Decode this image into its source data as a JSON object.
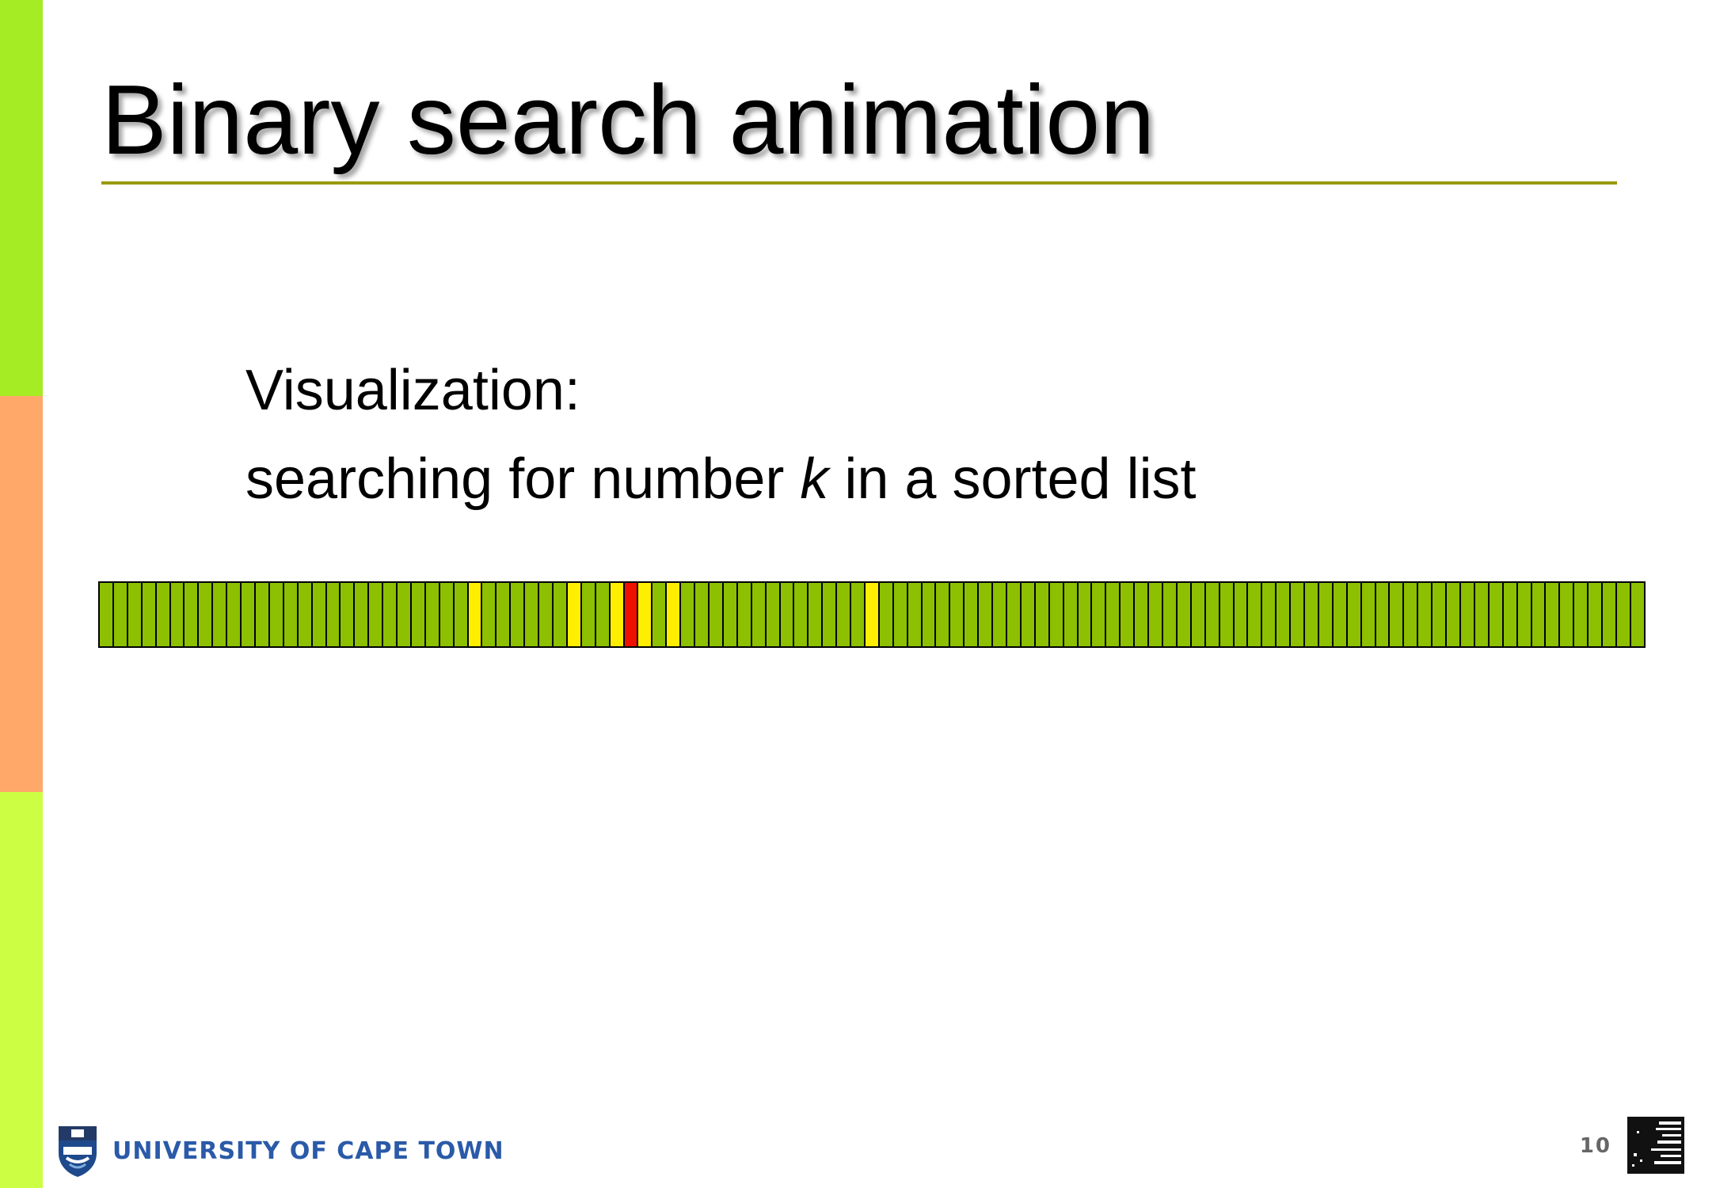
{
  "slide": {
    "title": "Binary search animation",
    "body_line1": "Visualization:",
    "body_line2_before": "searching for number ",
    "body_line2_var": "k",
    "body_line2_after": " in a sorted list",
    "page_number": "10",
    "university_name": "UNIVERSITY OF CAPE TOWN"
  },
  "array_strip": {
    "cell_count": 109,
    "highlight_yellow": [
      26,
      33,
      36,
      38,
      40,
      54
    ],
    "highlight_red": [
      37
    ],
    "colors": {
      "default": "#8cc000",
      "yellow": "#ffee00",
      "red": "#ee1100",
      "border": "#000000"
    }
  },
  "colors": {
    "sidebar_top": "#a6ec24",
    "sidebar_middle": "#ffa86a",
    "sidebar_bottom": "#ccff44",
    "title_rule": "#9a9a10",
    "university_blue": "#2a5aa8"
  }
}
